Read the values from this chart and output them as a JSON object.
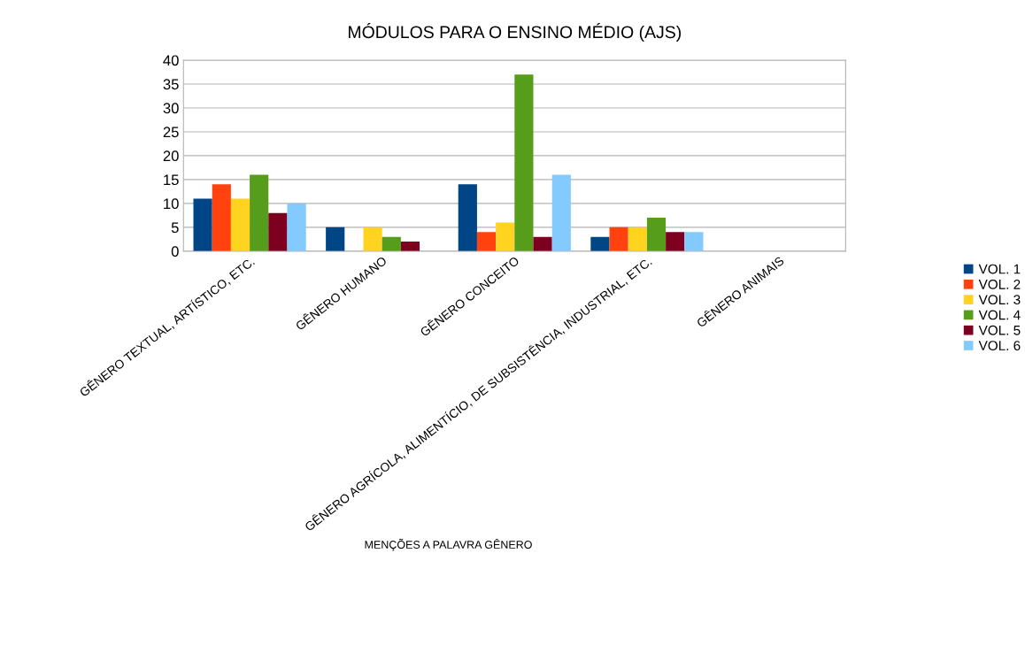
{
  "chart_data": {
    "type": "bar",
    "title": "MÓDULOS PARA O ENSINO MÉDIO (AJS)",
    "xlabel": "MENÇÕES A PALAVRA GÊNERO",
    "categories": [
      "GÊNERO TEXTUAL, ARTÍSTICO, ETC.",
      "GÊNERO HUMANO",
      "GÊNERO CONCEITO",
      "GÊNERO AGRÍCOLA, ALIMENTÍCIO, DE SUBSISTÊNCIA, INDUSTRIAL, ETC.",
      "GÊNERO ANIMAIS"
    ],
    "series": [
      {
        "name": "VOL. 1",
        "color": "#004586",
        "values": [
          11,
          5,
          14,
          3,
          0
        ]
      },
      {
        "name": "VOL. 2",
        "color": "#ff420e",
        "values": [
          14,
          0,
          4,
          5,
          0
        ]
      },
      {
        "name": "VOL. 3",
        "color": "#ffd320",
        "values": [
          11,
          5,
          6,
          5,
          0
        ]
      },
      {
        "name": "VOL. 4",
        "color": "#579d1c",
        "values": [
          16,
          3,
          37,
          7,
          0
        ]
      },
      {
        "name": "VOL. 5",
        "color": "#7e0021",
        "values": [
          8,
          2,
          3,
          4,
          0
        ]
      },
      {
        "name": "VOL. 6",
        "color": "#83caff",
        "values": [
          10,
          0,
          16,
          4,
          0
        ]
      }
    ],
    "ylim": [
      0,
      40
    ],
    "yticks": [
      0,
      5,
      10,
      15,
      20,
      25,
      30,
      35,
      40
    ],
    "grid": "y",
    "legend": "right"
  }
}
